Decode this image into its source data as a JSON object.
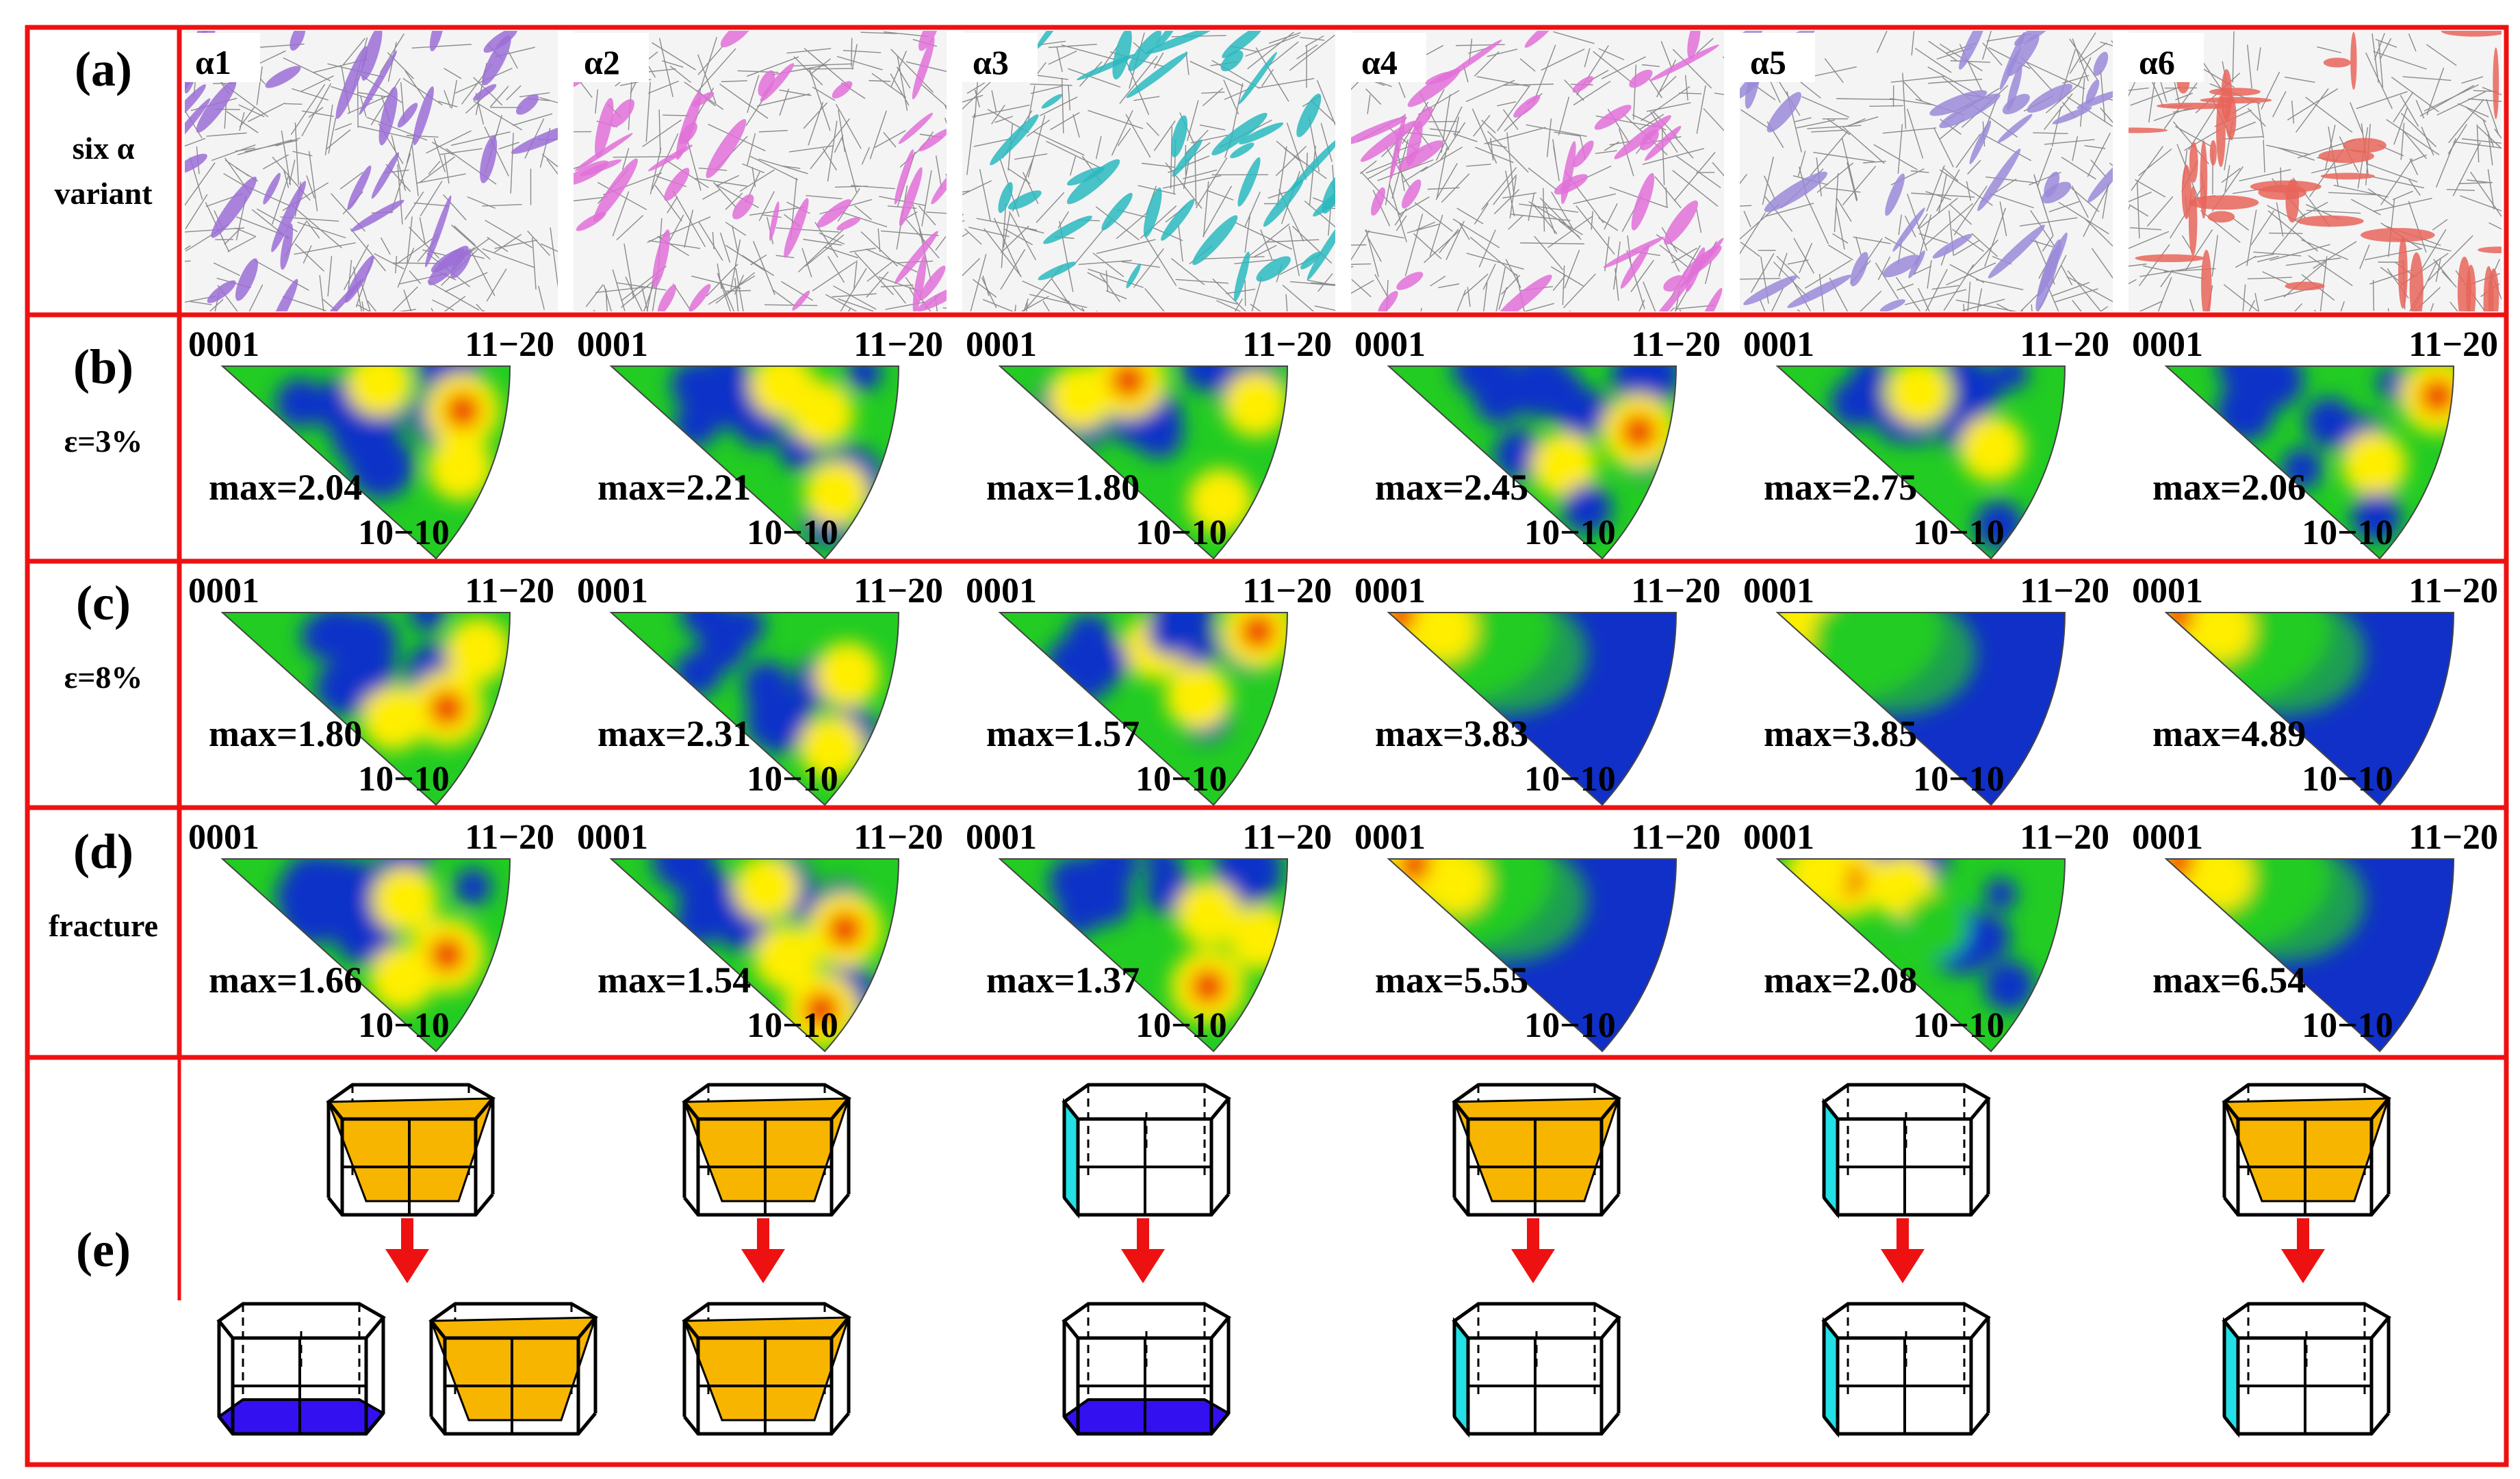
{
  "rows": {
    "a": {
      "letter": "(a)",
      "label_lines": [
        "six α",
        "variant"
      ]
    },
    "b": {
      "letter": "(b)",
      "label_lines": [
        "ε=3%"
      ],
      "max_values": [
        "max=2.04",
        "max=2.21",
        "max=1.80",
        "max=2.45",
        "max=2.75",
        "max=2.06"
      ]
    },
    "c": {
      "letter": "(c)",
      "label_lines": [
        "ε=8%"
      ],
      "max_values": [
        "max=1.80",
        "max=2.31",
        "max=1.57",
        "max=3.83",
        "max=3.85",
        "max=4.89"
      ]
    },
    "d": {
      "letter": "(d)",
      "label_lines": [
        "fracture"
      ],
      "max_values": [
        "max=1.66",
        "max=1.54",
        "max=1.37",
        "max=5.55",
        "max=2.08",
        "max=6.54"
      ]
    },
    "e": {
      "letter": "(e)"
    }
  },
  "variants": [
    "α1",
    "α2",
    "α3",
    "α4",
    "α5",
    "α6"
  ],
  "variant_colors": [
    "#9b6fd6",
    "#e070d8",
    "#2ab8c0",
    "#e070d8",
    "#9a8ad8",
    "#e8655a"
  ],
  "ipf_corners": {
    "top_left": "0001",
    "top_right": "11−20",
    "bottom": "10−10"
  },
  "colormap": {
    "low": "#1030c8",
    "mid": "#22cc22",
    "high": "#ffee00",
    "peak": "#ee2200"
  },
  "plane_colors": {
    "pyramidal": "#f7b500",
    "prismatic": "#22e0e6",
    "basal": "#3310f0"
  },
  "transitions": [
    {
      "before": [
        "pyramidal"
      ],
      "after": [
        "basal",
        "pyramidal"
      ]
    },
    {
      "before": [
        "pyramidal"
      ],
      "after": [
        "pyramidal"
      ]
    },
    {
      "before": [
        "prismatic"
      ],
      "after": [
        "basal"
      ]
    },
    {
      "before": [
        "pyramidal"
      ],
      "after": [
        "prismatic"
      ]
    },
    {
      "before": [
        "prismatic"
      ],
      "after": [
        "prismatic"
      ]
    },
    {
      "before": [
        "pyramidal"
      ],
      "after": [
        "prismatic"
      ]
    }
  ],
  "arrow_color": "#ee1111",
  "border_color": "#ee1111"
}
